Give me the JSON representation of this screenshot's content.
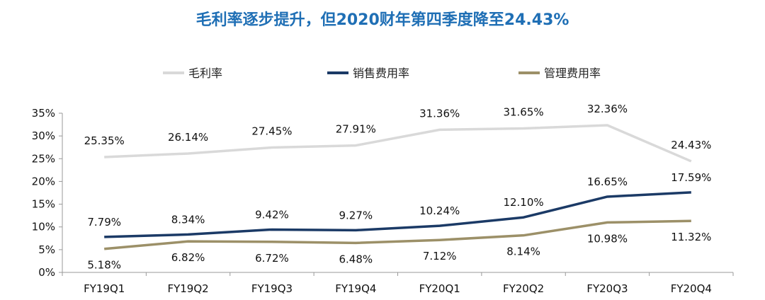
{
  "title": "毛利率逐步提升，但2020财年第四季度降至24.43%",
  "chart_data": {
    "type": "line",
    "title": "毛利率逐步提升，但2020财年第四季度降至24.43%",
    "categories": [
      "FY19Q1",
      "FY19Q2",
      "FY19Q3",
      "FY19Q4",
      "FY20Q1",
      "FY20Q2",
      "FY20Q3",
      "FY20Q4"
    ],
    "ylim": [
      0,
      35
    ],
    "yticks": [
      "0%",
      "5%",
      "10%",
      "15%",
      "20%",
      "25%",
      "30%",
      "35%"
    ],
    "grid": false,
    "legend_placement": "top",
    "series": [
      {
        "name": "毛利率",
        "color": "#d9d9d9",
        "values": [
          25.35,
          26.14,
          27.45,
          27.91,
          31.36,
          31.65,
          32.36,
          24.43
        ],
        "labels": [
          "25.35%",
          "26.14%",
          "27.45%",
          "27.91%",
          "31.36%",
          "31.65%",
          "32.36%",
          "24.43%"
        ]
      },
      {
        "name": "销售费用率",
        "color": "#1b3a66",
        "values": [
          7.79,
          8.34,
          9.42,
          9.27,
          10.24,
          12.1,
          16.65,
          17.59
        ],
        "labels": [
          "7.79%",
          "8.34%",
          "9.42%",
          "9.27%",
          "10.24%",
          "12.10%",
          "16.65%",
          "17.59%"
        ]
      },
      {
        "name": "管理费用率",
        "color": "#9c9068",
        "values": [
          5.18,
          6.82,
          6.72,
          6.48,
          7.12,
          8.14,
          10.98,
          11.32
        ],
        "labels": [
          "5.18%",
          "6.82%",
          "6.72%",
          "6.48%",
          "7.12%",
          "8.14%",
          "10.98%",
          "11.32%"
        ]
      }
    ]
  }
}
